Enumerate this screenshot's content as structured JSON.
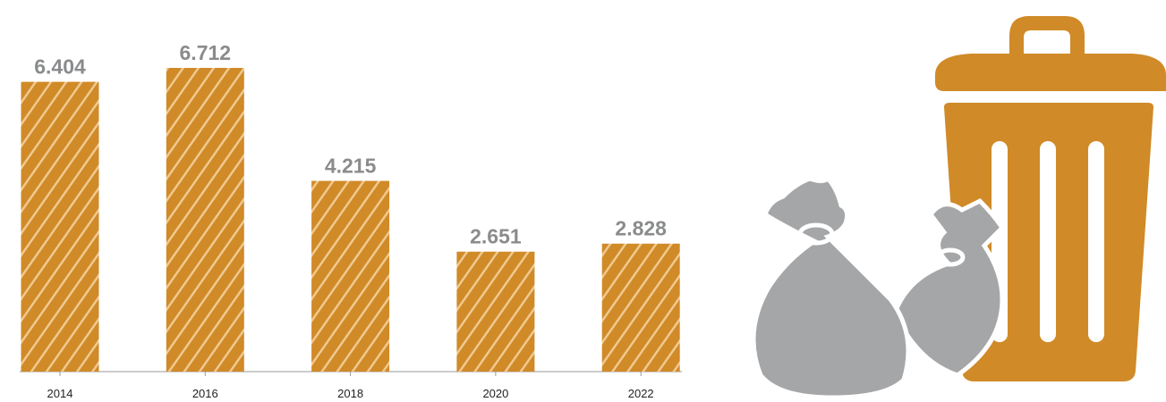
{
  "chart_data": {
    "type": "bar",
    "categories": [
      "2014",
      "2016",
      "2018",
      "2020",
      "2022"
    ],
    "values": [
      6.404,
      6.712,
      4.215,
      2.651,
      2.828
    ],
    "color": "#d08a28"
  }
}
